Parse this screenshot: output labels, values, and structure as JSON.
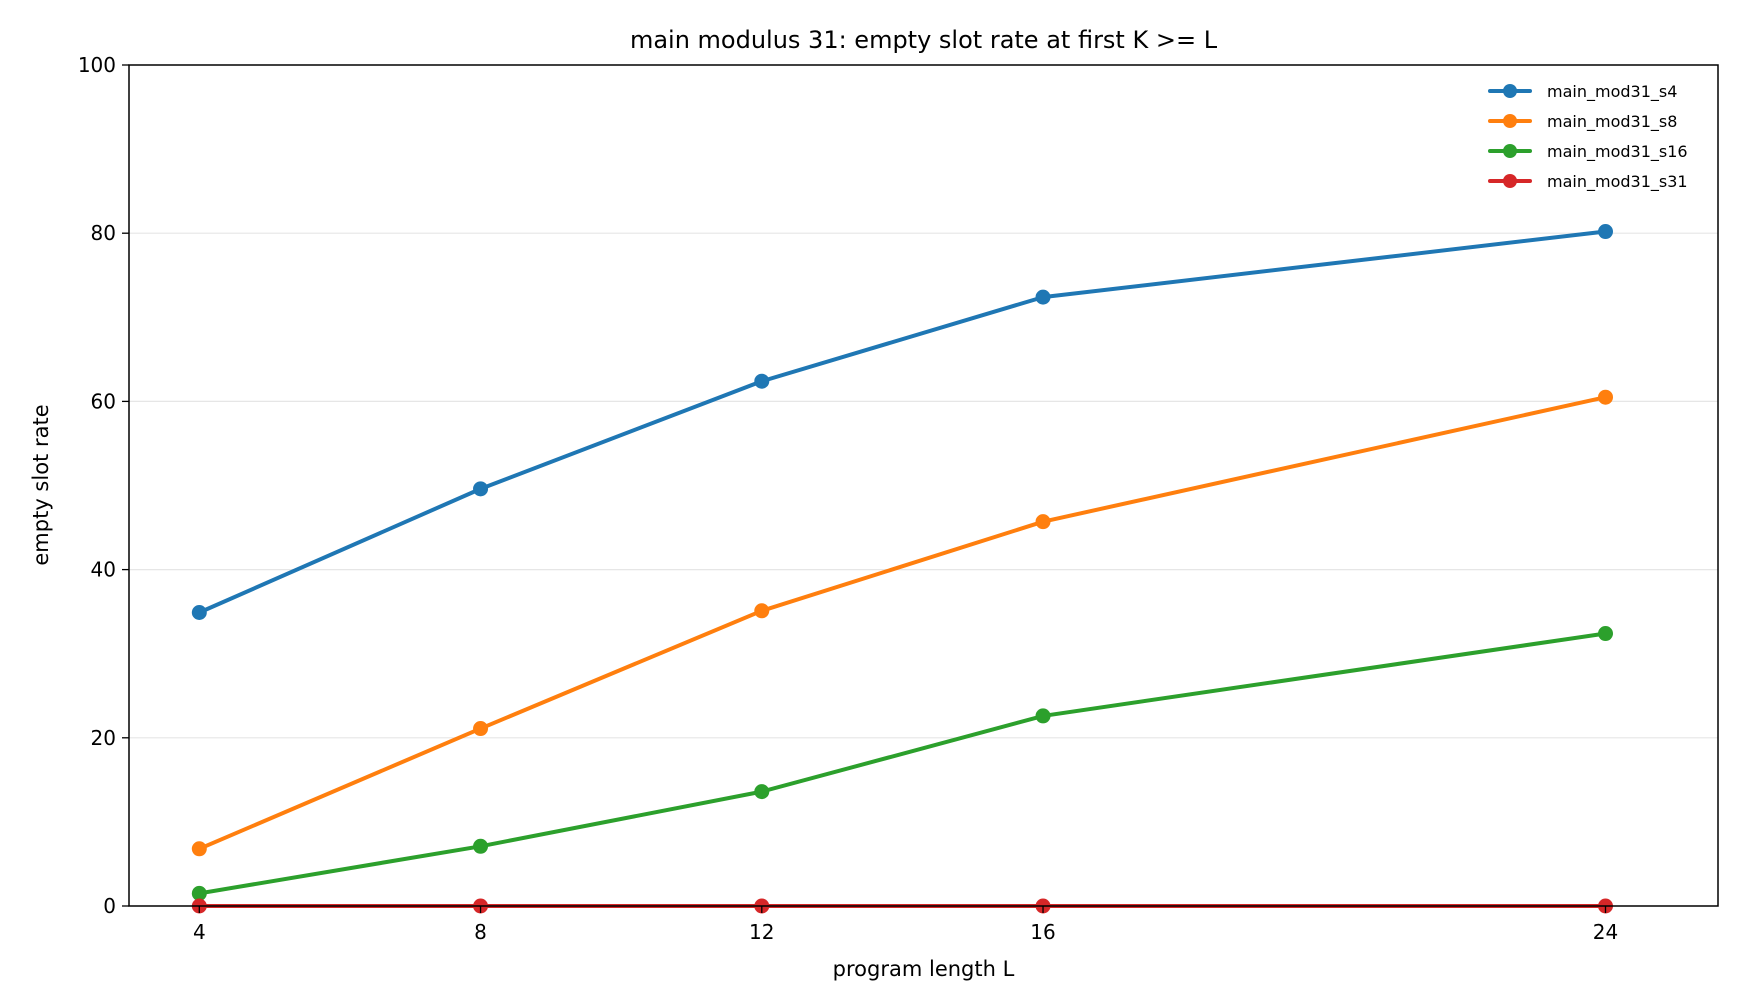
{
  "chart_data": {
    "type": "line",
    "title": "main modulus 31: empty slot rate at first K >= L",
    "xlabel": "program length L",
    "ylabel": "empty slot rate",
    "x": [
      4,
      8,
      12,
      16,
      24
    ],
    "x_ticks": [
      "4",
      "8",
      "12",
      "16",
      "24"
    ],
    "xlim": [
      3,
      25.6
    ],
    "ylim": [
      0,
      100
    ],
    "y_ticks": [
      "0",
      "20",
      "40",
      "60",
      "80",
      "100"
    ],
    "grid": "horizontal",
    "legend_position": "top-right",
    "series": [
      {
        "name": "main_mod31_s4",
        "color": "#1f77b4",
        "values": [
          34.9,
          49.6,
          62.4,
          72.4,
          80.2
        ]
      },
      {
        "name": "main_mod31_s8",
        "color": "#ff7f0e",
        "values": [
          6.8,
          21.1,
          35.1,
          45.7,
          60.5
        ]
      },
      {
        "name": "main_mod31_s16",
        "color": "#2ca02c",
        "values": [
          1.5,
          7.1,
          13.6,
          22.6,
          32.4
        ]
      },
      {
        "name": "main_mod31_s31",
        "color": "#d62728",
        "values": [
          0,
          0,
          0,
          0,
          0
        ]
      }
    ]
  }
}
